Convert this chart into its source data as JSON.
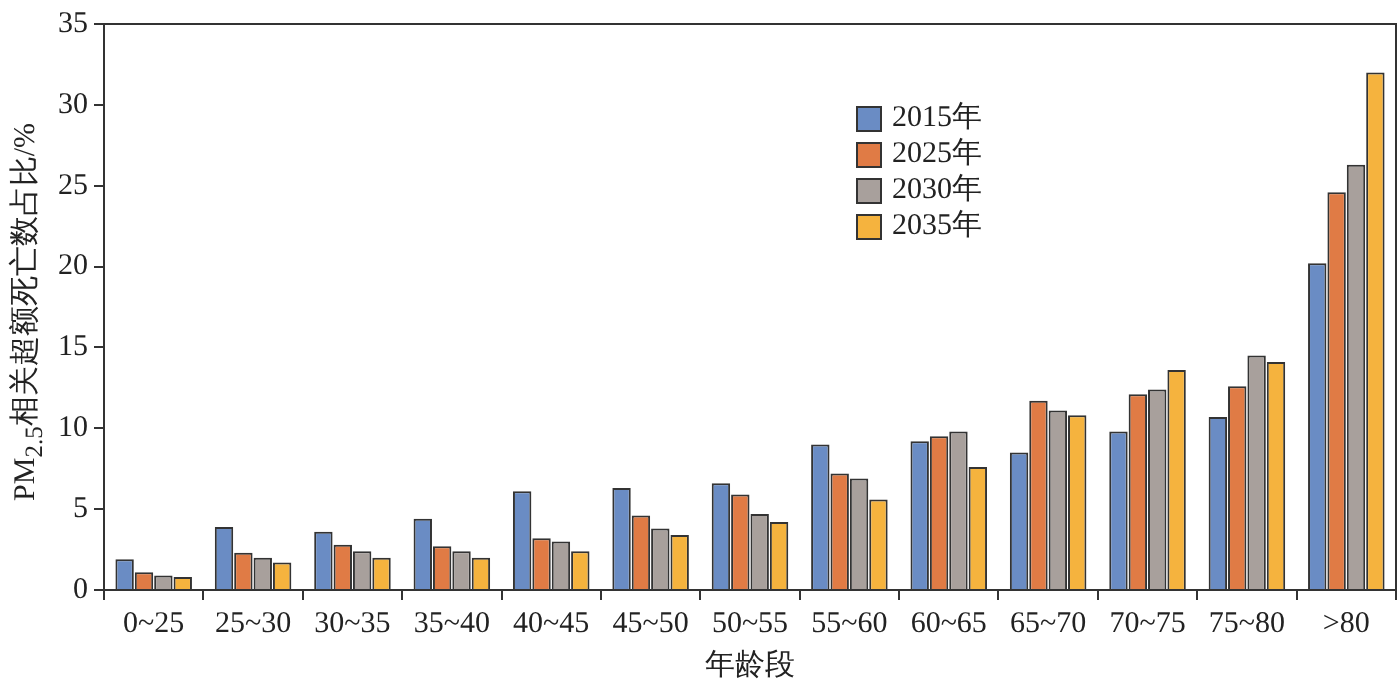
{
  "chart_data": {
    "type": "bar",
    "xlabel": "年龄段",
    "ylabel": "PM$_{2.5}$相关超额死亡数占比/%",
    "categories": [
      "0~25",
      "25~30",
      "30~35",
      "35~40",
      "40~45",
      "45~50",
      "50~55",
      "55~60",
      "60~65",
      "65~70",
      "70~75",
      "75~80",
      ">80"
    ],
    "series": [
      {
        "name": "2015年",
        "color": "#6a8cc4",
        "values": [
          1.9,
          3.9,
          3.6,
          4.4,
          6.1,
          6.3,
          6.6,
          9.0,
          9.2,
          8.5,
          9.8,
          10.7,
          20.2
        ]
      },
      {
        "name": "2025年",
        "color": "#e07b45",
        "values": [
          1.1,
          2.3,
          2.8,
          2.7,
          3.2,
          4.6,
          5.9,
          7.2,
          9.5,
          11.7,
          12.1,
          12.6,
          24.6
        ]
      },
      {
        "name": "2030年",
        "color": "#a8a09c",
        "values": [
          0.9,
          2.0,
          2.4,
          2.4,
          3.0,
          3.8,
          4.7,
          6.9,
          9.8,
          11.1,
          12.4,
          14.5,
          26.3
        ]
      },
      {
        "name": "2035年",
        "color": "#f5b33e",
        "values": [
          0.8,
          1.7,
          2.0,
          2.0,
          2.4,
          3.4,
          4.2,
          5.6,
          7.6,
          10.8,
          13.6,
          14.1,
          32.0
        ]
      }
    ],
    "ylim": [
      0,
      35
    ],
    "yticks": [
      0,
      5,
      10,
      15,
      20,
      25,
      30,
      35
    ],
    "grid": false,
    "legend": "top right"
  }
}
